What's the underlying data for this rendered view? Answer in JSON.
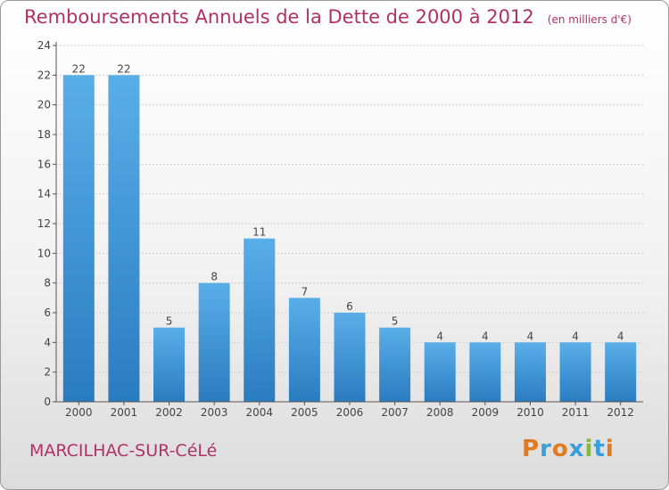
{
  "header": {
    "title": "Remboursements Annuels de la Dette de 2000 à 2012",
    "unit": "(en milliers d'€)"
  },
  "footer": {
    "commune": "MARCILHAC-SUR-CéLé",
    "logo": {
      "letters": [
        "P",
        "r",
        "o",
        "x",
        "i",
        "t",
        "i"
      ],
      "colors": [
        "#e07b22",
        "#3a9fd8",
        "#e07b22",
        "#3a9fd8",
        "#86b83a",
        "#3a9fd8",
        "#e07b22"
      ]
    }
  },
  "colors": {
    "bar_light": "#5aaee8",
    "bar_dark": "#2a7cc0",
    "title": "#b0306a",
    "grid": "#cccccc"
  },
  "chart_data": {
    "type": "bar",
    "title": "Remboursements Annuels de la Dette de 2000 à 2012",
    "categories": [
      "2000",
      "2001",
      "2002",
      "2003",
      "2004",
      "2005",
      "2006",
      "2007",
      "2008",
      "2009",
      "2010",
      "2011",
      "2012"
    ],
    "values": [
      22,
      22,
      5,
      8,
      11,
      7,
      6,
      5,
      4,
      4,
      4,
      4,
      4
    ],
    "ylim": [
      0,
      24
    ],
    "yticks": [
      0,
      2,
      4,
      6,
      8,
      10,
      12,
      14,
      16,
      18,
      20,
      22,
      24
    ],
    "grid": true,
    "data_labels": true
  }
}
